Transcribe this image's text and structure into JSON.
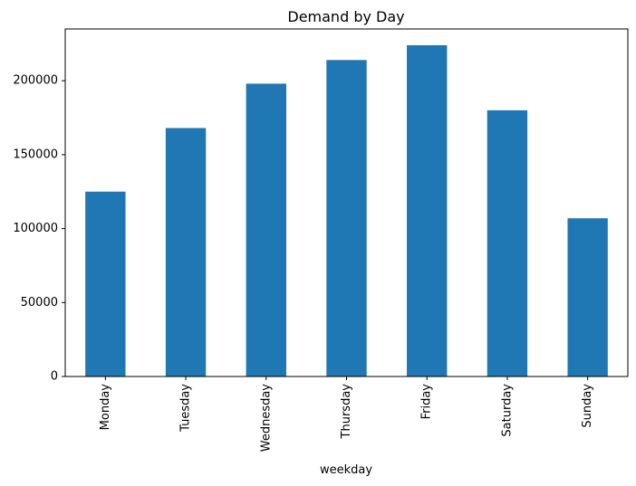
{
  "chart_data": {
    "type": "bar",
    "title": "Demand by Day",
    "xlabel": "weekday",
    "ylabel": "",
    "categories": [
      "Monday",
      "Tuesday",
      "Wednesday",
      "Thursday",
      "Friday",
      "Saturday",
      "Sunday"
    ],
    "values": [
      125000,
      168000,
      198000,
      214000,
      224000,
      180000,
      107000
    ],
    "ylim": [
      0,
      235000
    ],
    "yticks": [
      0,
      50000,
      100000,
      150000,
      200000
    ],
    "ytick_labels": [
      "0",
      "50000",
      "100000",
      "150000",
      "200000"
    ],
    "bar_color": "#1f77b4",
    "grid": false,
    "legend": "none"
  }
}
